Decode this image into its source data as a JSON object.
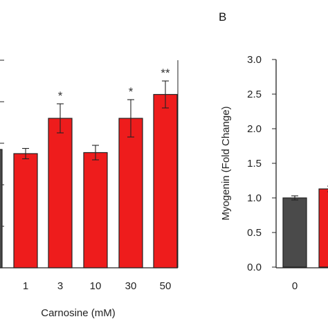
{
  "chart_data": [
    {
      "panel": "",
      "type": "bar",
      "xlabel": "Carnosine (mM)",
      "ylabel": "",
      "categories": [
        "",
        "1",
        "3",
        "10",
        "30",
        "50"
      ],
      "values": [
        1.14,
        1.1,
        1.44,
        1.11,
        1.44,
        1.67
      ],
      "errors": [
        0.0,
        0.05,
        0.14,
        0.07,
        0.18,
        0.13
      ],
      "bar_colors": [
        "#4a4a4a",
        "#ee1c1c",
        "#ee1c1c",
        "#ee1c1c",
        "#ee1c1c",
        "#ee1c1c"
      ],
      "significance": [
        "",
        "",
        "*",
        "",
        "*",
        "**"
      ],
      "ylim": [
        0,
        2.0
      ]
    },
    {
      "panel": "B",
      "type": "bar",
      "xlabel": "",
      "ylabel": "Myogenin (Fold Change)",
      "categories": [
        "0",
        ""
      ],
      "values": [
        1.0,
        1.13
      ],
      "errors": [
        0.03,
        0.04
      ],
      "bar_colors": [
        "#4a4a4a",
        "#ee1c1c"
      ],
      "yticks": [
        "0.0",
        "0.5",
        "1.0",
        "1.5",
        "2.0",
        "2.5",
        "3.0"
      ],
      "ylim": [
        0,
        3.0
      ]
    }
  ]
}
